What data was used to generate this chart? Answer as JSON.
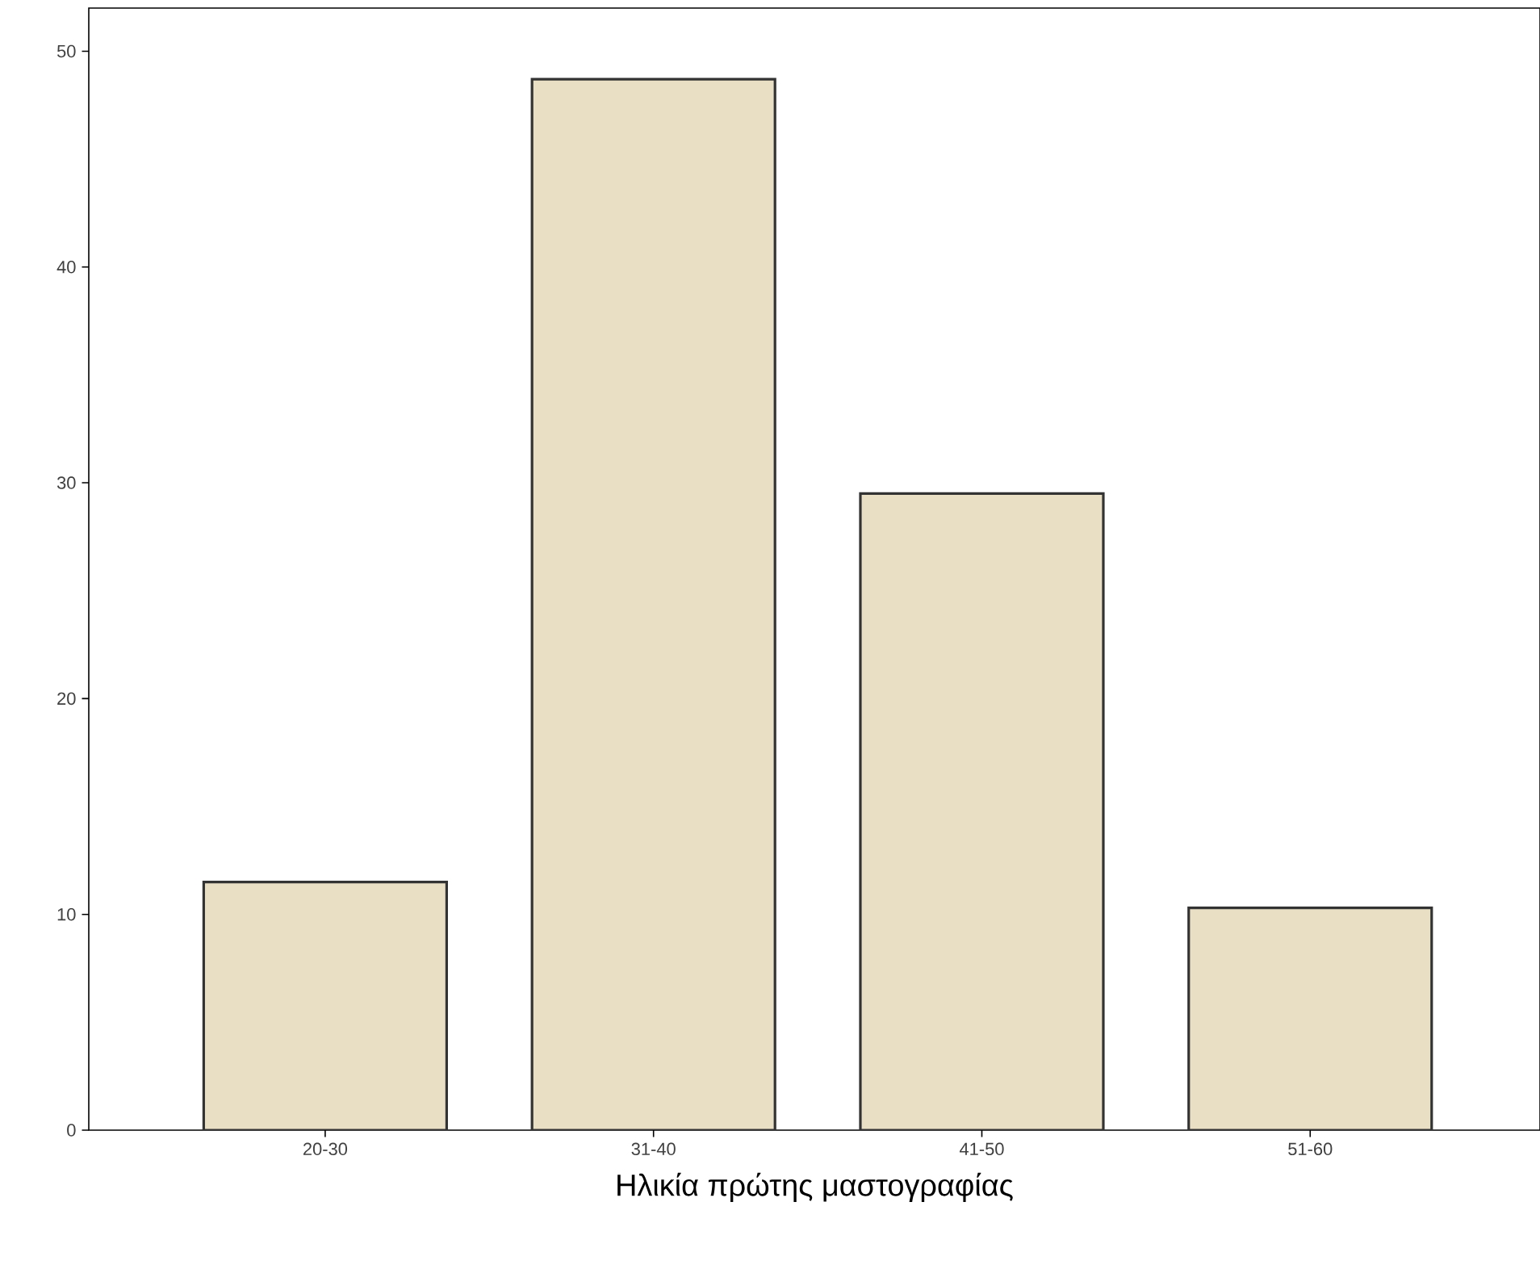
{
  "chart_data": {
    "type": "bar",
    "xlabel": "Ηλικία πρώτης μαστογραφίας",
    "categories": [
      "20-30",
      "31-40",
      "41-50",
      "51-60"
    ],
    "values": [
      11.5,
      48.7,
      29.5,
      10.3
    ],
    "color": "#e9dfc4",
    "ylim": [
      0,
      52
    ],
    "yticks": [
      0,
      10,
      20,
      30,
      40,
      50
    ],
    "grid": false
  }
}
